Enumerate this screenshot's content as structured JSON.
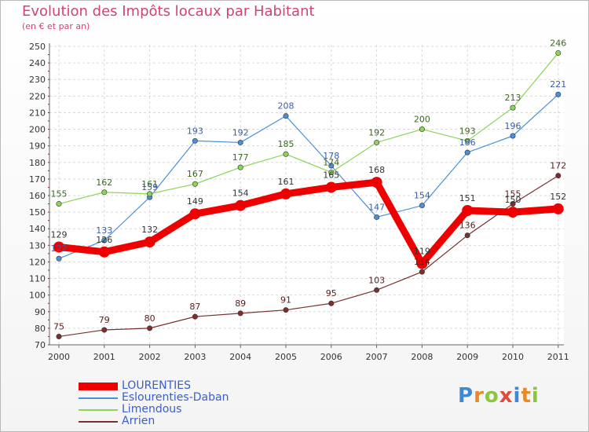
{
  "header": {
    "title": "Evolution des Impôts locaux par Habitant",
    "subtitle": "(en € et par an)"
  },
  "brand": {
    "letters": [
      "P",
      "r",
      "o",
      "x",
      "i",
      "t",
      "i"
    ]
  },
  "chart_data": {
    "type": "line",
    "title": "Evolution des Impôts locaux par Habitant",
    "subtitle": "(en € et par an)",
    "xlabel": "",
    "ylabel": "",
    "x": [
      "2000",
      "2001",
      "2002",
      "2003",
      "2004",
      "2005",
      "2006",
      "2007",
      "2008",
      "2009",
      "2010",
      "2011"
    ],
    "ylim": [
      70,
      250
    ],
    "yticks": [
      70,
      80,
      90,
      100,
      110,
      120,
      130,
      140,
      150,
      160,
      170,
      180,
      190,
      200,
      210,
      220,
      230,
      240,
      250
    ],
    "grid": true,
    "legend_position": "bottom-left",
    "series": [
      {
        "name": "LOURENTIES",
        "color": "#ee0000",
        "label_color": "#333333",
        "bold": true,
        "values": [
          129,
          126,
          132,
          149,
          154,
          161,
          165,
          168,
          119,
          151,
          150,
          152
        ]
      },
      {
        "name": "Eslourenties-Daban",
        "color": "#4a90d9",
        "label_color": "#3b5ea8",
        "bold": false,
        "values": [
          122,
          133,
          159,
          193,
          192,
          208,
          178,
          147,
          154,
          186,
          196,
          221
        ]
      },
      {
        "name": "Limendous",
        "color": "#8ed35a",
        "label_color": "#3b6a1e",
        "bold": false,
        "values": [
          155,
          162,
          161,
          167,
          177,
          185,
          174,
          192,
          200,
          193,
          213,
          246
        ]
      },
      {
        "name": "Arrien",
        "color": "#7a3030",
        "label_color": "#5a2020",
        "bold": false,
        "values": [
          75,
          79,
          80,
          87,
          89,
          91,
          95,
          103,
          114,
          136,
          155,
          172
        ]
      }
    ]
  }
}
